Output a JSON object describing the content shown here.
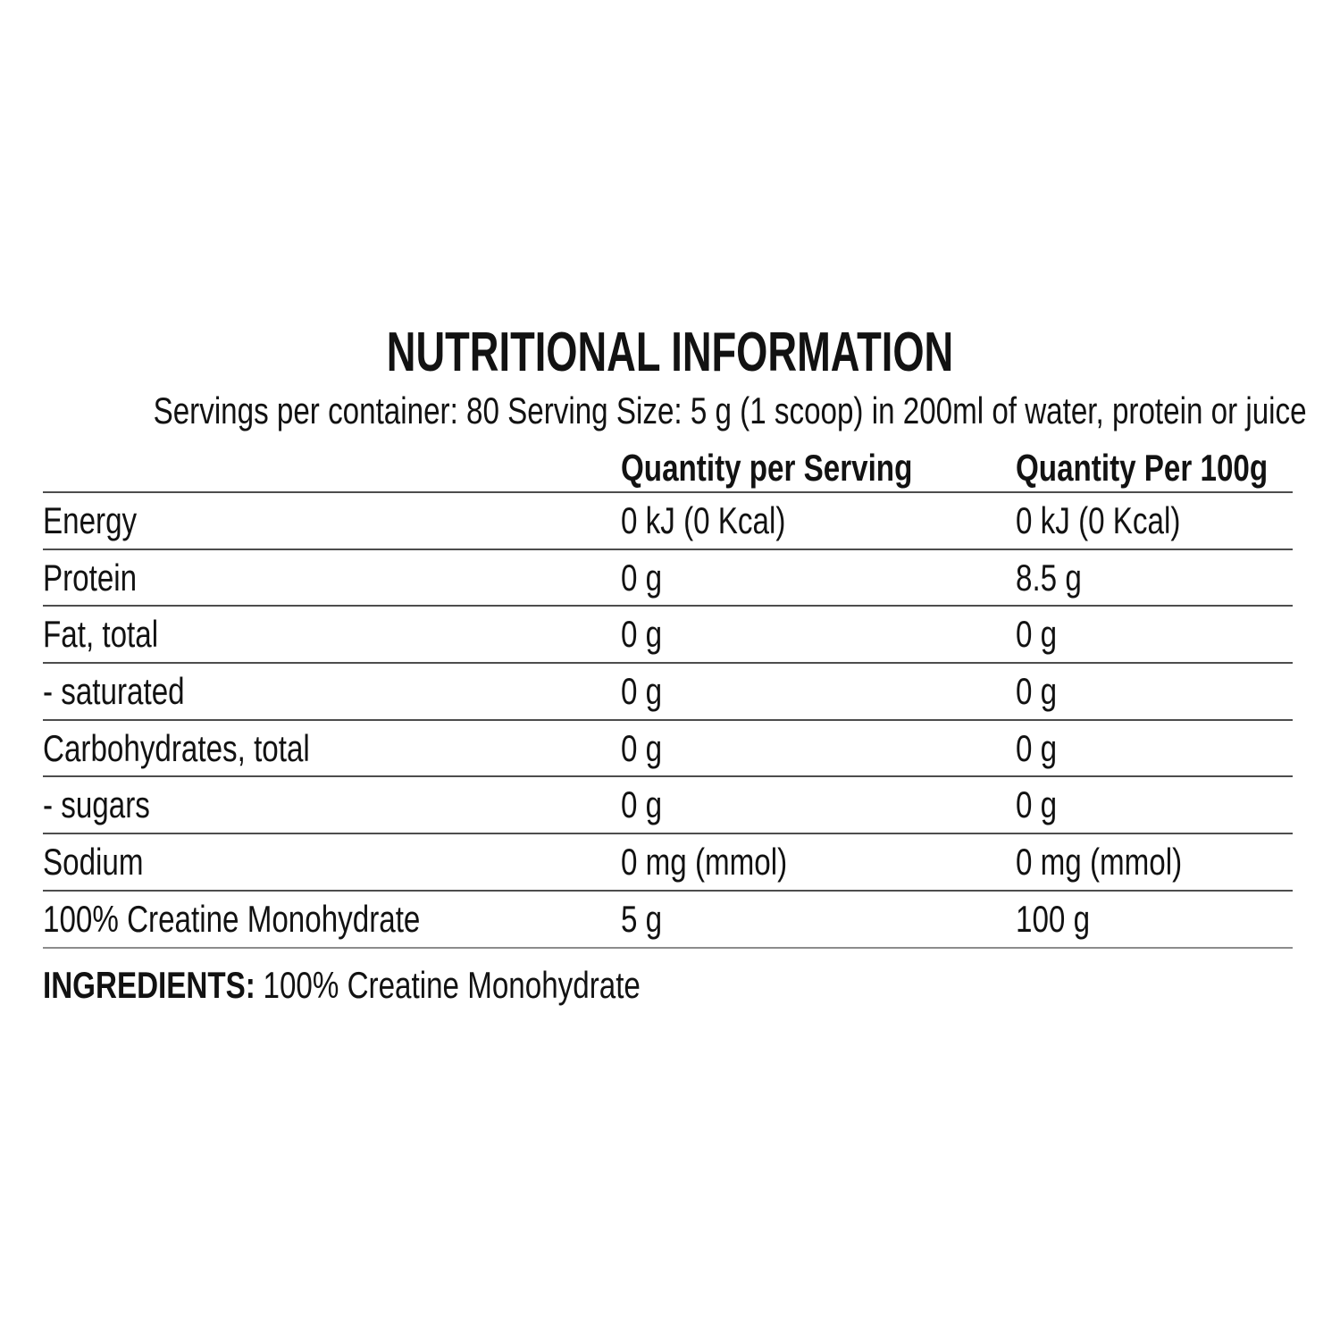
{
  "label": {
    "title": "NUTRITIONAL INFORMATION",
    "serving_info": "Servings per container: 80 Serving Size: 5 g (1 scoop) in 200ml of water, protein or juice"
  },
  "table": {
    "columns": [
      "",
      "Quantity per Serving",
      "Quantity Per 100g"
    ],
    "rows": [
      {
        "label": "Energy",
        "per_serving": "0 kJ (0 Kcal)",
        "per_100g": "0 kJ (0 Kcal)"
      },
      {
        "label": "Protein",
        "per_serving": "0 g",
        "per_100g": "8.5 g"
      },
      {
        "label": "Fat, total",
        "per_serving": "0 g",
        "per_100g": "0 g"
      },
      {
        "label": "- saturated",
        "per_serving": "0 g",
        "per_100g": "0 g"
      },
      {
        "label": "Carbohydrates, total",
        "per_serving": "0 g",
        "per_100g": "0 g"
      },
      {
        "label": "- sugars",
        "per_serving": "0 g",
        "per_100g": "0 g"
      },
      {
        "label": "Sodium",
        "per_serving": "0 mg (mmol)",
        "per_100g": "0 mg (mmol)"
      },
      {
        "label": "100% Creatine Monohydrate",
        "per_serving": "5 g",
        "per_100g": "100 g"
      }
    ]
  },
  "ingredients": {
    "label": "INGREDIENTS:",
    "value": "100% Creatine Monohydrate"
  },
  "colors": {
    "text": "#121212",
    "rule": "#4d4d4d",
    "closing_rule": "#8c8c8c",
    "background": "#ffffff"
  }
}
